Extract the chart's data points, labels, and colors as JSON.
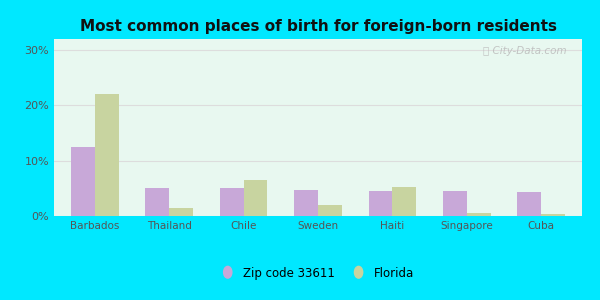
{
  "title": "Most common places of birth for foreign-born residents",
  "categories": [
    "Barbados",
    "Thailand",
    "Chile",
    "Sweden",
    "Haiti",
    "Singapore",
    "Cuba"
  ],
  "zip_values": [
    12.5,
    5.0,
    5.0,
    4.7,
    4.6,
    4.5,
    4.4
  ],
  "florida_values": [
    22.0,
    1.5,
    6.5,
    2.0,
    5.2,
    0.5,
    0.4
  ],
  "zip_color": "#c8a8d8",
  "florida_color": "#c8d4a0",
  "background_outer": "#00e8ff",
  "background_inner": "#e8f8f0",
  "title_fontsize": 11,
  "ylabel_ticks": [
    "0%",
    "10%",
    "20%",
    "30%"
  ],
  "ytick_values": [
    0,
    10,
    20,
    30
  ],
  "ylim": [
    0,
    32
  ],
  "legend_zip_label": "Zip code 33611",
  "legend_florida_label": "Florida",
  "watermark": "ⓘ City-Data.com"
}
